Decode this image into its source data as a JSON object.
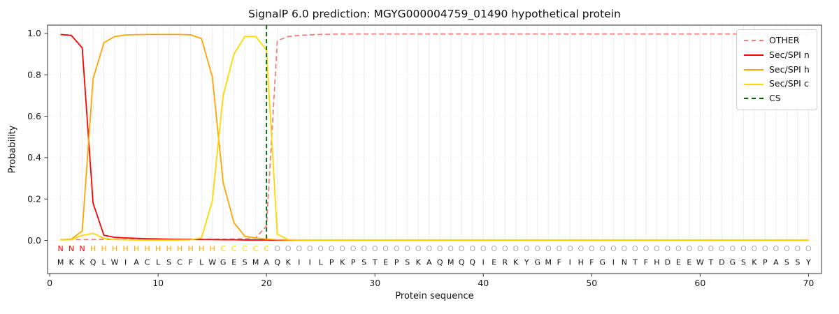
{
  "chart": {
    "title": "SignalP 6.0 prediction: MGYG000004759_01490 hypothetical protein",
    "xlabel": "Protein sequence",
    "ylabel": "Probability"
  },
  "legend": {
    "items": [
      {
        "label": "OTHER",
        "color": "#f08080",
        "dash": true
      },
      {
        "label": "Sec/SPI n",
        "color": "#ff0000",
        "dash": false
      },
      {
        "label": "Sec/SPI h",
        "color": "#ffa500",
        "dash": false
      },
      {
        "label": "Sec/SPI c",
        "color": "#ffd700",
        "dash": false
      },
      {
        "label": "CS",
        "color": "#006400",
        "dash": true
      }
    ]
  },
  "chart_data": {
    "type": "line",
    "title": "SignalP 6.0 prediction: MGYG000004759_01490 hypothetical protein",
    "xlabel": "Protein sequence",
    "ylabel": "Probability",
    "positions": "1-70",
    "xticks": [
      0,
      10,
      20,
      30,
      40,
      50,
      60,
      70
    ],
    "yticks": [
      "0.0",
      "0.2",
      "0.4",
      "0.6",
      "0.8",
      "1.0"
    ],
    "xlim": [
      -0.2,
      71.2
    ],
    "ylim": [
      -0.16,
      1.04
    ],
    "grid": true,
    "legend_position": "upper right",
    "cs_position": 20,
    "cs_color": "#006400",
    "sequence": "MKKQLWIACLSCFLWGESMAQKIILPKPSTEPSKAQMQQIERKYGMFIHFGINTFHDEEWTDGSKPASSY",
    "region_labels": "NNNHHHHHHHHHHHHCCCCCOOOOOOOOOOOOOOOOOOOOOOOOOOOOOOOOOOOOOOOOOOOOOOOOOO",
    "letter_colors": {
      "N": "#ff0000",
      "H": "#ffa500",
      "C": "#ffd700",
      "O": "#ababab"
    },
    "series": [
      {
        "name": "OTHER",
        "color": "#f08080",
        "dash": true,
        "values": [
          0.004,
          0.004,
          0.004,
          0.004,
          0.005,
          0.005,
          0.005,
          0.005,
          0.005,
          0.005,
          0.005,
          0.005,
          0.005,
          0.005,
          0.006,
          0.006,
          0.007,
          0.008,
          0.012,
          0.07,
          0.965,
          0.985,
          0.99,
          0.993,
          0.995,
          0.996,
          0.997,
          0.997,
          0.997,
          0.997,
          0.997,
          0.997,
          0.997,
          0.997,
          0.997,
          0.997,
          0.997,
          0.997,
          0.997,
          0.997,
          0.997,
          0.997,
          0.997,
          0.997,
          0.997,
          0.997,
          0.997,
          0.997,
          0.997,
          0.997,
          0.997,
          0.997,
          0.997,
          0.997,
          0.997,
          0.997,
          0.997,
          0.997,
          0.997,
          0.997,
          0.997,
          0.997,
          0.997,
          0.997,
          0.997,
          0.997,
          0.997,
          0.997,
          0.997,
          0.997
        ]
      },
      {
        "name": "Sec/SPI n",
        "color": "#ff0000",
        "dash": false,
        "values": [
          0.995,
          0.99,
          0.93,
          0.18,
          0.025,
          0.015,
          0.012,
          0.01,
          0.008,
          0.007,
          0.006,
          0.005,
          0.005,
          0.004,
          0.004,
          0.003,
          0.003,
          0.002,
          0.002,
          0.002,
          0.001,
          0.001,
          0.001,
          0.001,
          0.001,
          0.001,
          0.001,
          0.001,
          0.001,
          0.001,
          0.001,
          0.001,
          0.001,
          0.001,
          0.001,
          0.001,
          0.001,
          0.001,
          0.001,
          0.001,
          0.001,
          0.001,
          0.001,
          0.001,
          0.001,
          0.001,
          0.001,
          0.001,
          0.001,
          0.001,
          0.001,
          0.001,
          0.001,
          0.001,
          0.001,
          0.001,
          0.001,
          0.001,
          0.001,
          0.001,
          0.001,
          0.001,
          0.001,
          0.001,
          0.001,
          0.001,
          0.001,
          0.001,
          0.001,
          0.001
        ]
      },
      {
        "name": "Sec/SPI h",
        "color": "#ffa500",
        "dash": false,
        "values": [
          0.003,
          0.006,
          0.045,
          0.78,
          0.955,
          0.985,
          0.992,
          0.994,
          0.995,
          0.995,
          0.995,
          0.995,
          0.993,
          0.975,
          0.79,
          0.28,
          0.085,
          0.02,
          0.012,
          0.006,
          0.003,
          0.002,
          0.002,
          0.002,
          0.002,
          0.002,
          0.002,
          0.002,
          0.002,
          0.002,
          0.002,
          0.002,
          0.002,
          0.002,
          0.002,
          0.002,
          0.002,
          0.002,
          0.002,
          0.002,
          0.002,
          0.002,
          0.002,
          0.002,
          0.002,
          0.002,
          0.002,
          0.002,
          0.002,
          0.002,
          0.002,
          0.002,
          0.002,
          0.002,
          0.002,
          0.002,
          0.002,
          0.002,
          0.002,
          0.002,
          0.002,
          0.002,
          0.002,
          0.002,
          0.002,
          0.002,
          0.002,
          0.002,
          0.002,
          0.002
        ]
      },
      {
        "name": "Sec/SPI c",
        "color": "#ffd700",
        "dash": false,
        "values": [
          0.002,
          0.004,
          0.024,
          0.034,
          0.01,
          0.004,
          0.003,
          0.002,
          0.002,
          0.002,
          0.002,
          0.002,
          0.003,
          0.012,
          0.19,
          0.7,
          0.9,
          0.985,
          0.985,
          0.92,
          0.03,
          0.004,
          0.002,
          0.002,
          0.002,
          0.002,
          0.002,
          0.002,
          0.002,
          0.002,
          0.002,
          0.002,
          0.002,
          0.002,
          0.002,
          0.002,
          0.002,
          0.002,
          0.002,
          0.002,
          0.002,
          0.002,
          0.002,
          0.002,
          0.002,
          0.002,
          0.002,
          0.002,
          0.002,
          0.002,
          0.002,
          0.002,
          0.002,
          0.002,
          0.002,
          0.002,
          0.002,
          0.002,
          0.002,
          0.002,
          0.002,
          0.002,
          0.002,
          0.002,
          0.002,
          0.002,
          0.002,
          0.002,
          0.002,
          0.002
        ]
      }
    ]
  }
}
